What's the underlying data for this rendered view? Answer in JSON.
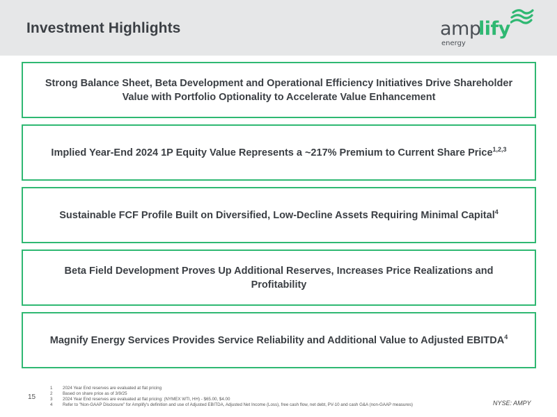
{
  "header": {
    "title": "Investment Highlights",
    "logo": {
      "part1": "amp",
      "part2": "lify",
      "part3": "energy",
      "accent_color": "#2fb872"
    }
  },
  "highlights": [
    {
      "text": "Strong Balance Sheet, Beta Development and Operational Efficiency Initiatives Drive Shareholder Value with Portfolio Optionality to Accelerate Value Enhancement",
      "sup": ""
    },
    {
      "text": "Implied Year-End 2024 1P Equity Value Represents a ~217% Premium to Current Share Price",
      "sup": "1,2,3"
    },
    {
      "text": "Sustainable FCF Profile Built on Diversified, Low-Decline Assets Requiring Minimal Capital",
      "sup": "4"
    },
    {
      "text": "Beta Field Development Proves Up Additional Reserves, Increases Price Realizations and Profitability",
      "sup": ""
    },
    {
      "text": "Magnify Energy Services Provides Service Reliability and Additional Value to Adjusted EBITDA",
      "sup": "4"
    }
  ],
  "footer": {
    "page_number": "15",
    "ticker": "NYSE: AMPY",
    "footnotes": [
      {
        "num": "1",
        "text": "2024 Year End reserves are evaluated at flat pricing"
      },
      {
        "num": "2",
        "text": "Based on share price as of 3/9/25"
      },
      {
        "num": "3",
        "text": "2024 Year End reserves are evaluated at flat pricing: (NYMEX WTI, HH) - $65.00, $4.00"
      },
      {
        "num": "4",
        "text": "Refer to \"Non-GAAP Disclosure\" for Amplify's definition and use of Adjusted EBITDA, Adjusted Net Income (Loss), free cash flow, net debt, PV-10 and cash G&A (non-GAAP measures)"
      }
    ]
  }
}
